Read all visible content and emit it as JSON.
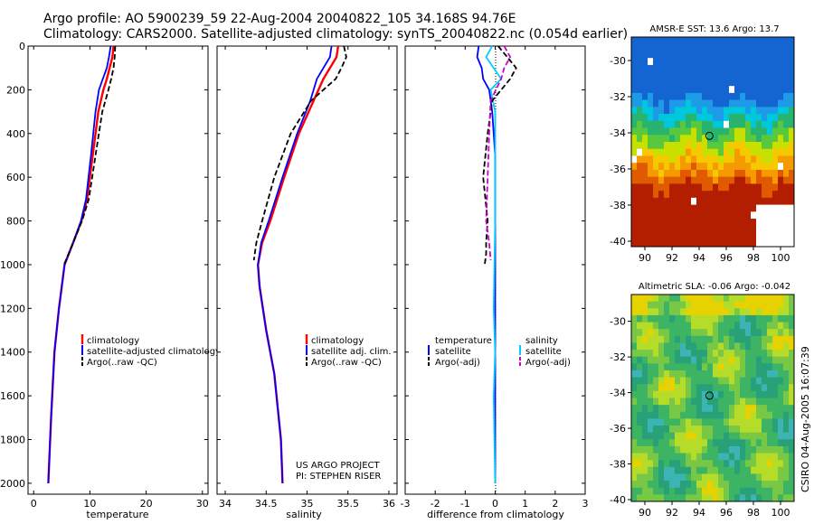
{
  "header": {
    "line1": "Argo profile: AO 5900239_59 22-Aug-2004 20040822_105 34.168S 94.76E",
    "line2": "Climatology: CARS2000. Satellite-adjusted climatology: synTS_20040822.nc (0.054d earlier)"
  },
  "footer": {
    "project": "US ARGO PROJECT",
    "pi": "PI: STEPHEN RISER",
    "stamp": "CSIRO 04-Aug-2005 16:07:39"
  },
  "colors": {
    "climatology": "#ff0000",
    "satellite": "#0000ff",
    "argo": "#000000",
    "sal_satellite": "#00ccff",
    "sal_argo": "#cc00cc"
  },
  "chart_data": [
    {
      "id": "temperature",
      "type": "line",
      "xlabel": "temperature",
      "xlim": [
        -1,
        31
      ],
      "xticks": [
        0,
        10,
        20,
        30
      ],
      "ylim": [
        0,
        2050
      ],
      "yticks": [
        0,
        200,
        400,
        600,
        800,
        1000,
        1200,
        1400,
        1600,
        1800,
        2000
      ],
      "legend": [
        "climatology",
        "satellite-adjusted climatology",
        "Argo(..raw -QC)"
      ],
      "series": [
        {
          "name": "climatology",
          "color": "#ff0000",
          "width": 2.4,
          "dash": "",
          "x": [
            14.2,
            14.0,
            13.5,
            13.0,
            12.4,
            11.5,
            10.5,
            9.5,
            8.5,
            7.0,
            5.5,
            4.5,
            3.7,
            3.1,
            2.6
          ],
          "y": [
            0,
            50,
            100,
            150,
            200,
            300,
            500,
            700,
            800,
            900,
            1000,
            1200,
            1400,
            1700,
            2000
          ]
        },
        {
          "name": "satellite-adjusted climatology",
          "color": "#0000ff",
          "width": 1.8,
          "dash": "",
          "x": [
            13.7,
            13.4,
            13.0,
            12.3,
            11.6,
            11.0,
            10.2,
            9.3,
            8.4,
            7.0,
            5.5,
            4.5,
            3.7,
            3.1,
            2.6
          ],
          "y": [
            0,
            50,
            100,
            150,
            200,
            300,
            500,
            700,
            800,
            900,
            1000,
            1200,
            1400,
            1700,
            2000
          ]
        },
        {
          "name": "Argo(..raw -QC)",
          "color": "#000000",
          "width": 1.8,
          "dash": "6,3",
          "x": [
            14.5,
            14.4,
            14.2,
            13.8,
            13.3,
            12.2,
            11.0,
            9.8,
            8.6,
            7.0,
            5.4
          ],
          "y": [
            0,
            50,
            100,
            150,
            200,
            300,
            500,
            700,
            800,
            900,
            1000
          ]
        }
      ]
    },
    {
      "id": "salinity",
      "type": "line",
      "xlabel": "salinity",
      "xticks": [
        34,
        34.5,
        35,
        35.5,
        36
      ],
      "xlim": [
        33.9,
        36.1
      ],
      "ylim": [
        0,
        2050
      ],
      "legend": [
        "climatology",
        "satellite adj. clim.",
        "Argo(..raw -QC)"
      ],
      "series": [
        {
          "name": "climatology",
          "color": "#ff0000",
          "width": 2.4,
          "dash": "",
          "x": [
            35.38,
            35.36,
            35.28,
            35.2,
            35.08,
            34.9,
            34.72,
            34.55,
            34.45,
            34.4,
            34.42,
            34.5,
            34.6,
            34.68,
            34.7
          ],
          "y": [
            0,
            50,
            100,
            150,
            250,
            400,
            600,
            800,
            900,
            1000,
            1100,
            1300,
            1500,
            1800,
            2000
          ]
        },
        {
          "name": "satellite adj. clim.",
          "color": "#0000ff",
          "width": 1.8,
          "dash": "",
          "x": [
            35.3,
            35.28,
            35.2,
            35.12,
            35.04,
            34.88,
            34.7,
            34.53,
            34.44,
            34.4,
            34.42,
            34.5,
            34.6,
            34.68,
            34.7
          ],
          "y": [
            0,
            50,
            100,
            150,
            250,
            400,
            600,
            800,
            900,
            1000,
            1100,
            1300,
            1500,
            1800,
            2000
          ]
        },
        {
          "name": "Argo(..raw -QC)",
          "color": "#000000",
          "width": 1.8,
          "dash": "6,3",
          "x": [
            35.45,
            35.48,
            35.42,
            35.35,
            35.05,
            34.8,
            34.6,
            34.45,
            34.38,
            34.35
          ],
          "y": [
            0,
            50,
            100,
            150,
            250,
            400,
            600,
            800,
            900,
            980
          ]
        }
      ]
    },
    {
      "id": "difference",
      "type": "line",
      "xlabel": "difference from climatology",
      "xlim": [
        -3,
        3
      ],
      "xticks": [
        -3,
        -2,
        -1,
        0,
        1,
        2,
        3
      ],
      "ylim": [
        0,
        2050
      ],
      "legend_left": [
        "temperature",
        "satellite",
        "Argo(-adj)"
      ],
      "legend_right": [
        "salinity",
        "satellite",
        "Argo(-adj)"
      ],
      "series": [
        {
          "name": "temperature satellite",
          "color": "#0000ff",
          "width": 1.8,
          "dash": "",
          "x": [
            -0.55,
            -0.6,
            -0.45,
            -0.4,
            -0.2,
            -0.1,
            0,
            0,
            0,
            0
          ],
          "y": [
            0,
            50,
            100,
            150,
            200,
            300,
            500,
            1000,
            1500,
            2000
          ]
        },
        {
          "name": "salinity satellite",
          "color": "#00ccff",
          "width": 1.8,
          "dash": "",
          "x": [
            -0.1,
            -0.3,
            -0.05,
            0.2,
            -0.15,
            0,
            0,
            -0.05,
            0,
            -0.05,
            0
          ],
          "y": [
            0,
            50,
            100,
            150,
            200,
            300,
            800,
            1200,
            1400,
            1600,
            2000
          ]
        },
        {
          "name": "temperature Argo(-adj)",
          "color": "#000000",
          "width": 1.8,
          "dash": "6,3",
          "x": [
            0.1,
            0.4,
            0.7,
            0.5,
            -0.1,
            -0.25,
            -0.4,
            -0.25,
            -0.3,
            -0.3,
            -0.35
          ],
          "y": [
            0,
            50,
            100,
            150,
            250,
            400,
            600,
            800,
            900,
            950,
            1000
          ]
        },
        {
          "name": "salinity Argo(-adj)",
          "color": "#cc00cc",
          "width": 1.8,
          "dash": "6,3",
          "x": [
            0.3,
            0.5,
            0.3,
            0.2,
            -0.15,
            -0.2,
            -0.25,
            -0.3,
            -0.2,
            -0.15
          ],
          "y": [
            0,
            50,
            100,
            150,
            250,
            400,
            600,
            800,
            900,
            980
          ]
        }
      ]
    },
    {
      "id": "sst-map",
      "type": "heatmap",
      "title": "AMSR-E SST: 13.6 Argo: 13.7",
      "xticks": [
        90,
        92,
        94,
        96,
        98,
        100
      ],
      "yticks": [
        -30,
        -32,
        -34,
        -36,
        -38,
        -40
      ],
      "xlim": [
        89,
        101
      ],
      "ylim": [
        -40.3,
        -28.7
      ],
      "marker": {
        "lon": 94.76,
        "lat": -34.168
      }
    },
    {
      "id": "sla-map",
      "type": "heatmap",
      "title": "Altimetric SLA: -0.06 Argo: -0.042",
      "xticks": [
        90,
        92,
        94,
        96,
        98,
        100
      ],
      "yticks": [
        -30,
        -32,
        -34,
        -36,
        -38,
        -40
      ],
      "xlim": [
        89,
        101
      ],
      "ylim": [
        -40.1,
        -28.5
      ],
      "marker": {
        "lon": 94.76,
        "lat": -34.168
      }
    }
  ]
}
